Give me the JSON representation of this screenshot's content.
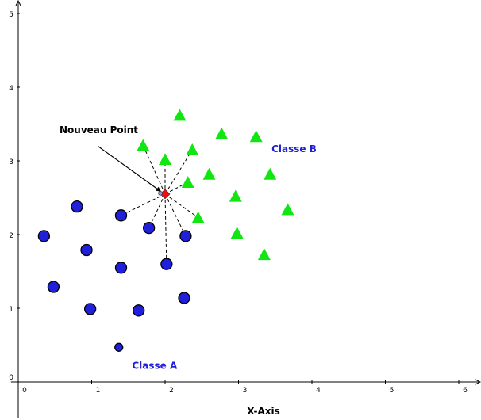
{
  "chart_data": {
    "type": "scatter",
    "xlabel": "X-Axis",
    "ylabel": "",
    "xlim": [
      -0.1,
      6.2
    ],
    "ylim": [
      -0.05,
      5.1
    ],
    "x_ticks": [
      "0",
      "1",
      "2",
      "3",
      "4",
      "5",
      "6"
    ],
    "y_ticks": [
      "0",
      "1",
      "2",
      "3",
      "4",
      "5"
    ],
    "grid": false,
    "series": [
      {
        "name": "Classe A",
        "marker": "circle",
        "color": "#1f1fdc",
        "points": [
          [
            0.35,
            1.98
          ],
          [
            0.48,
            1.29
          ],
          [
            0.8,
            2.38
          ],
          [
            0.93,
            1.79
          ],
          [
            0.98,
            0.99
          ],
          [
            1.4,
            2.26
          ],
          [
            1.4,
            1.55
          ],
          [
            1.37,
            0.47
          ],
          [
            1.64,
            0.97
          ],
          [
            1.78,
            2.09
          ],
          [
            2.02,
            1.6
          ],
          [
            2.28,
            1.98
          ],
          [
            2.26,
            1.14
          ]
        ]
      },
      {
        "name": "Classe B",
        "marker": "triangle",
        "color": "#12e612",
        "points": [
          [
            2.2,
            3.62
          ],
          [
            1.7,
            3.21
          ],
          [
            2.0,
            3.02
          ],
          [
            2.37,
            3.15
          ],
          [
            2.77,
            3.37
          ],
          [
            3.24,
            3.33
          ],
          [
            2.6,
            2.82
          ],
          [
            2.31,
            2.71
          ],
          [
            3.43,
            2.82
          ],
          [
            2.96,
            2.52
          ],
          [
            2.45,
            2.23
          ],
          [
            3.67,
            2.34
          ],
          [
            2.98,
            2.02
          ],
          [
            3.35,
            1.73
          ]
        ]
      }
    ],
    "new_point": {
      "label": "Nouveau Point",
      "x": 2.0,
      "y": 2.55,
      "marker": "diamond",
      "color": "#ee1111"
    },
    "neighbor_lines_to": [
      [
        1.7,
        3.21
      ],
      [
        2.0,
        3.02
      ],
      [
        2.37,
        3.15
      ],
      [
        2.31,
        2.71
      ],
      [
        2.45,
        2.23
      ],
      [
        2.28,
        1.98
      ],
      [
        2.02,
        1.6
      ],
      [
        1.78,
        2.09
      ],
      [
        1.4,
        2.26
      ]
    ],
    "annotation_arrow_from": [
      1.0,
      3.22
    ],
    "class_labels": [
      {
        "text": "Classe B",
        "x": 3.45,
        "y": 3.12,
        "color": "#1f1fdc"
      },
      {
        "text": "Classe A",
        "x": 1.55,
        "y": 0.18,
        "color": "#1f1fdc"
      }
    ]
  }
}
